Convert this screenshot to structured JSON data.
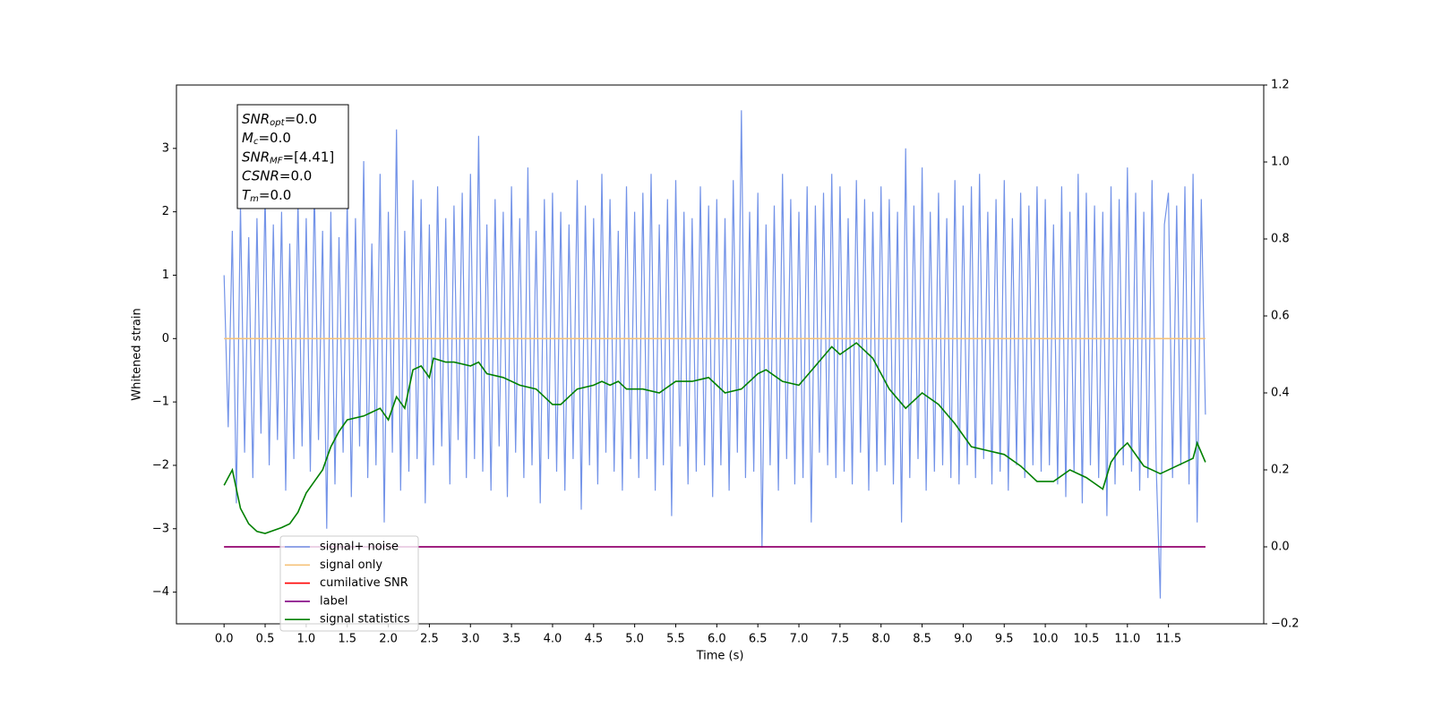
{
  "chart_data": {
    "type": "line",
    "x_label": "Time (s)",
    "y_label": "Whitened strain",
    "xlim": [
      -0.58,
      12.66
    ],
    "ylim": [
      -4.5,
      4.0
    ],
    "y2lim": [
      -0.2,
      1.2
    ],
    "xticks": [
      {
        "value": 0,
        "label": "0.0"
      },
      0.5,
      {
        "value": 1,
        "label": "1.0"
      },
      1.5,
      {
        "value": 2,
        "label": "2.0"
      },
      2.5,
      {
        "value": 3,
        "label": "3.0"
      },
      3.5,
      {
        "value": 4,
        "label": "4.0"
      },
      4.5,
      {
        "value": 5,
        "label": "5.0"
      },
      5.5,
      {
        "value": 6,
        "label": "6.0"
      },
      6.5,
      {
        "value": 7,
        "label": "7.0"
      },
      7.5,
      {
        "value": 8,
        "label": "8.0"
      },
      8.5,
      {
        "value": 9,
        "label": "9.0"
      },
      9.5,
      {
        "value": 10,
        "label": "10.0"
      },
      10.5,
      {
        "value": 11,
        "label": "11.0"
      },
      11.5
    ],
    "yticks": [
      {
        "value": -4,
        "label": "−4"
      },
      {
        "value": -3,
        "label": "−3"
      },
      {
        "value": -2,
        "label": "−2"
      },
      {
        "value": -1,
        "label": "−1"
      },
      0,
      1,
      2,
      3
    ],
    "y2ticks": [
      {
        "value": -0.2,
        "label": "−0.2"
      },
      {
        "value": 0,
        "label": "0.0"
      },
      0.2,
      0.4,
      0.6,
      0.8,
      {
        "value": 1,
        "label": "1.0"
      },
      1.2
    ],
    "grid": false,
    "legend_position": "lower left",
    "annotation": [
      {
        "main": "SNR",
        "sub": "opt",
        "rest": "=0.0"
      },
      {
        "main": "M",
        "sub": "c",
        "rest": "=0.0"
      },
      {
        "main": "SNR",
        "sub": "MF",
        "rest": "=[4.41]"
      },
      {
        "main": "CSNR",
        "rest": "=0.0"
      },
      {
        "main": "T",
        "sub": "m",
        "rest": "=0.0"
      }
    ],
    "series": [
      {
        "name": "signal+ noise",
        "color": "#7393e8",
        "axis": "y",
        "x": [
          0,
          0.05,
          0.1,
          0.15,
          0.2,
          0.25,
          0.3,
          0.35,
          0.4,
          0.45,
          0.5,
          0.55,
          0.6,
          0.65,
          0.7,
          0.75,
          0.8,
          0.85,
          0.9,
          0.95,
          1,
          1.05,
          1.1,
          1.15,
          1.2,
          1.25,
          1.3,
          1.35,
          1.4,
          1.45,
          1.5,
          1.55,
          1.6,
          1.65,
          1.7,
          1.75,
          1.8,
          1.85,
          1.9,
          1.95,
          2,
          2.05,
          2.1,
          2.15,
          2.2,
          2.25,
          2.3,
          2.35,
          2.4,
          2.45,
          2.5,
          2.55,
          2.6,
          2.65,
          2.7,
          2.75,
          2.8,
          2.85,
          2.9,
          2.95,
          3,
          3.05,
          3.1,
          3.15,
          3.2,
          3.25,
          3.3,
          3.35,
          3.4,
          3.45,
          3.5,
          3.55,
          3.6,
          3.65,
          3.7,
          3.75,
          3.8,
          3.85,
          3.9,
          3.95,
          4,
          4.05,
          4.1,
          4.15,
          4.2,
          4.25,
          4.3,
          4.35,
          4.4,
          4.45,
          4.5,
          4.55,
          4.6,
          4.65,
          4.7,
          4.75,
          4.8,
          4.85,
          4.9,
          4.95,
          5,
          5.05,
          5.1,
          5.15,
          5.2,
          5.25,
          5.3,
          5.35,
          5.4,
          5.45,
          5.5,
          5.55,
          5.6,
          5.65,
          5.7,
          5.75,
          5.8,
          5.85,
          5.9,
          5.95,
          6,
          6.05,
          6.1,
          6.15,
          6.2,
          6.25,
          6.3,
          6.35,
          6.4,
          6.45,
          6.5,
          6.55,
          6.6,
          6.65,
          6.7,
          6.75,
          6.8,
          6.85,
          6.9,
          6.95,
          7,
          7.05,
          7.1,
          7.15,
          7.2,
          7.25,
          7.3,
          7.35,
          7.4,
          7.45,
          7.5,
          7.55,
          7.6,
          7.65,
          7.7,
          7.75,
          7.8,
          7.85,
          7.9,
          7.95,
          8,
          8.05,
          8.1,
          8.15,
          8.2,
          8.25,
          8.3,
          8.35,
          8.4,
          8.45,
          8.5,
          8.55,
          8.6,
          8.65,
          8.7,
          8.75,
          8.8,
          8.85,
          8.9,
          8.95,
          9,
          9.05,
          9.1,
          9.15,
          9.2,
          9.25,
          9.3,
          9.35,
          9.4,
          9.45,
          9.5,
          9.55,
          9.6,
          9.65,
          9.7,
          9.75,
          9.8,
          9.85,
          9.9,
          9.95,
          10,
          10.05,
          10.1,
          10.15,
          10.2,
          10.25,
          10.3,
          10.35,
          10.4,
          10.45,
          10.5,
          10.55,
          10.6,
          10.65,
          10.7,
          10.75,
          10.8,
          10.85,
          10.9,
          10.95,
          11,
          11.05,
          11.1,
          11.15,
          11.2,
          11.25,
          11.3,
          11.35,
          11.4,
          11.45,
          11.5,
          11.55,
          11.6,
          11.65,
          11.7,
          11.75,
          11.8,
          11.85,
          11.9,
          11.95
        ],
        "values": [
          1.0,
          -1.4,
          1.7,
          -2.6,
          2.1,
          -1.8,
          1.6,
          -2.2,
          1.9,
          -1.5,
          2.3,
          -2.0,
          1.8,
          -1.6,
          2.0,
          -2.4,
          1.5,
          -1.9,
          2.2,
          -1.7,
          1.9,
          -2.1,
          2.4,
          -1.6,
          1.7,
          -3.0,
          2.0,
          -2.3,
          1.6,
          -1.8,
          2.2,
          -2.5,
          1.9,
          -1.7,
          2.8,
          -2.2,
          1.5,
          -2.0,
          2.6,
          -2.9,
          2.0,
          -1.8,
          3.3,
          -2.4,
          1.7,
          -2.1,
          2.5,
          -1.9,
          2.2,
          -2.6,
          1.8,
          -2.0,
          2.4,
          -1.7,
          1.9,
          -2.3,
          2.1,
          -1.6,
          2.3,
          -2.2,
          2.6,
          -1.9,
          3.2,
          -2.1,
          1.8,
          -2.4,
          2.2,
          -1.7,
          2.0,
          -2.5,
          2.4,
          -1.8,
          1.9,
          -2.2,
          2.7,
          -2.0,
          1.7,
          -2.6,
          2.2,
          -1.9,
          2.3,
          -2.1,
          2.0,
          -2.4,
          1.8,
          -1.9,
          2.5,
          -2.7,
          2.1,
          -2.0,
          1.9,
          -2.3,
          2.6,
          -1.8,
          2.2,
          -2.1,
          1.7,
          -2.4,
          2.4,
          -1.9,
          2.0,
          -2.2,
          2.3,
          -1.9,
          2.6,
          -2.4,
          1.8,
          -2.0,
          2.2,
          -2.8,
          2.5,
          -1.7,
          2.0,
          -2.3,
          1.9,
          -2.1,
          2.4,
          -2.0,
          2.1,
          -2.5,
          2.2,
          -2.0,
          1.9,
          -2.4,
          2.5,
          -1.8,
          3.6,
          -2.2,
          2.0,
          -2.1,
          2.3,
          -3.3,
          1.8,
          -2.0,
          2.1,
          -2.4,
          2.6,
          -1.9,
          2.2,
          -2.3,
          2.0,
          -2.2,
          2.4,
          -2.9,
          2.1,
          -1.8,
          2.3,
          -2.0,
          2.6,
          -2.2,
          2.4,
          -2.1,
          1.9,
          -2.3,
          2.5,
          -1.8,
          2.2,
          -2.4,
          2.0,
          -2.1,
          2.4,
          -2.0,
          2.2,
          -2.3,
          2.0,
          -2.9,
          3.0,
          -2.2,
          2.1,
          -1.9,
          2.7,
          -2.4,
          2.0,
          -2.1,
          2.3,
          -2.0,
          1.9,
          -2.2,
          2.5,
          -2.3,
          2.1,
          -2.0,
          2.4,
          -2.2,
          2.6,
          -1.9,
          2.0,
          -2.3,
          2.2,
          -2.1,
          2.5,
          -2.4,
          1.9,
          -2.0,
          2.3,
          -2.2,
          2.1,
          -2.0,
          2.4,
          -2.1,
          2.2,
          -2.0,
          1.8,
          -2.3,
          2.4,
          -2.5,
          2.0,
          -2.1,
          2.6,
          -2.6,
          2.3,
          -2.0,
          2.1,
          -2.2,
          2.0,
          -2.8,
          2.4,
          -2.3,
          2.2,
          -2.0,
          2.7,
          -2.1,
          2.3,
          -2.4,
          2.0,
          -2.2,
          2.5,
          -2.0,
          -4.1,
          1.8,
          2.3,
          -2.2,
          2.1,
          -2.0,
          2.4,
          -2.3,
          2.6,
          -2.9,
          2.2,
          -1.2
        ]
      },
      {
        "name": "signal only",
        "color": "#f5c27a",
        "axis": "y",
        "x": [
          0,
          11.95
        ],
        "values": [
          0,
          0
        ]
      },
      {
        "name": "cumilative SNR",
        "color": "#ff0000",
        "axis": "y2",
        "x": [
          0,
          11.95
        ],
        "values": [
          0,
          0
        ]
      },
      {
        "name": "label",
        "color": "#800080",
        "axis": "y2",
        "x": [
          0,
          11.95
        ],
        "values": [
          0,
          0
        ]
      },
      {
        "name": "signal statistics",
        "color": "#008000",
        "axis": "y2",
        "x": [
          0,
          0.1,
          0.2,
          0.3,
          0.4,
          0.5,
          0.7,
          0.8,
          0.9,
          1.0,
          1.1,
          1.2,
          1.3,
          1.4,
          1.5,
          1.7,
          1.8,
          1.9,
          2.0,
          2.1,
          2.2,
          2.3,
          2.4,
          2.5,
          2.55,
          2.7,
          2.8,
          3.0,
          3.1,
          3.2,
          3.4,
          3.6,
          3.8,
          4.0,
          4.1,
          4.3,
          4.5,
          4.6,
          4.7,
          4.8,
          4.9,
          5.1,
          5.3,
          5.5,
          5.7,
          5.9,
          6.1,
          6.3,
          6.5,
          6.6,
          6.8,
          7.0,
          7.2,
          7.4,
          7.5,
          7.7,
          7.9,
          8.1,
          8.3,
          8.5,
          8.7,
          8.9,
          9.1,
          9.3,
          9.5,
          9.7,
          9.9,
          10.1,
          10.3,
          10.5,
          10.7,
          10.8,
          10.9,
          11.0,
          11.2,
          11.4,
          11.6,
          11.8,
          11.85,
          11.95
        ],
        "values": [
          0.16,
          0.2,
          0.1,
          0.06,
          0.04,
          0.035,
          0.05,
          0.06,
          0.09,
          0.14,
          0.17,
          0.2,
          0.26,
          0.3,
          0.33,
          0.34,
          0.35,
          0.36,
          0.33,
          0.39,
          0.36,
          0.46,
          0.47,
          0.44,
          0.49,
          0.48,
          0.48,
          0.47,
          0.48,
          0.45,
          0.44,
          0.42,
          0.41,
          0.37,
          0.37,
          0.41,
          0.42,
          0.43,
          0.42,
          0.43,
          0.41,
          0.41,
          0.4,
          0.43,
          0.43,
          0.44,
          0.4,
          0.41,
          0.45,
          0.46,
          0.43,
          0.42,
          0.47,
          0.52,
          0.5,
          0.53,
          0.49,
          0.41,
          0.36,
          0.4,
          0.37,
          0.32,
          0.26,
          0.25,
          0.24,
          0.21,
          0.17,
          0.17,
          0.2,
          0.18,
          0.15,
          0.22,
          0.25,
          0.27,
          0.21,
          0.19,
          0.21,
          0.23,
          0.27,
          0.22
        ]
      }
    ]
  }
}
